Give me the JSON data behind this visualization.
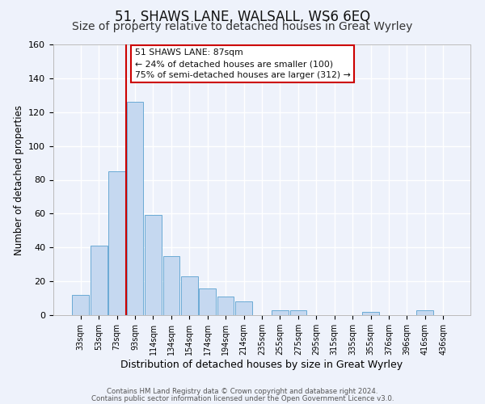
{
  "title": "51, SHAWS LANE, WALSALL, WS6 6EQ",
  "subtitle": "Size of property relative to detached houses in Great Wyrley",
  "xlabel": "Distribution of detached houses by size in Great Wyrley",
  "ylabel": "Number of detached properties",
  "bar_labels": [
    "33sqm",
    "53sqm",
    "73sqm",
    "93sqm",
    "114sqm",
    "134sqm",
    "154sqm",
    "174sqm",
    "194sqm",
    "214sqm",
    "235sqm",
    "255sqm",
    "275sqm",
    "295sqm",
    "315sqm",
    "335sqm",
    "355sqm",
    "376sqm",
    "396sqm",
    "416sqm",
    "436sqm"
  ],
  "bar_heights": [
    12,
    41,
    85,
    126,
    59,
    35,
    23,
    16,
    11,
    8,
    0,
    3,
    3,
    0,
    0,
    0,
    2,
    0,
    0,
    3,
    0
  ],
  "bar_color": "#c5d8f0",
  "bar_edge_color": "#6aaad4",
  "ylim": [
    0,
    160
  ],
  "yticks": [
    0,
    20,
    40,
    60,
    80,
    100,
    120,
    140,
    160
  ],
  "vline_x_index": 3,
  "vline_color": "#cc0000",
  "annotation_title": "51 SHAWS LANE: 87sqm",
  "annotation_line1": "← 24% of detached houses are smaller (100)",
  "annotation_line2": "75% of semi-detached houses are larger (312) →",
  "footer1": "Contains HM Land Registry data © Crown copyright and database right 2024.",
  "footer2": "Contains public sector information licensed under the Open Government Licence v3.0.",
  "bg_color": "#eef2fb",
  "plot_bg_color": "#eef2fb",
  "grid_color": "#ffffff",
  "title_fontsize": 12,
  "subtitle_fontsize": 10,
  "xlabel_fontsize": 9,
  "ylabel_fontsize": 8.5,
  "tick_fontsize": 7,
  "ytick_fontsize": 8
}
